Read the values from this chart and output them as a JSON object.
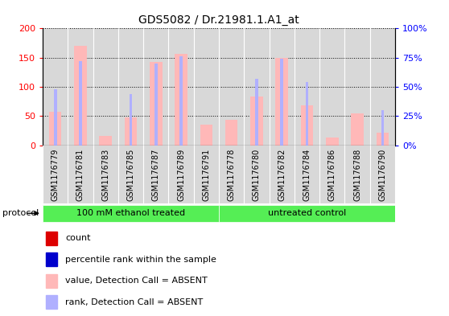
{
  "title": "GDS5082 / Dr.21981.1.A1_at",
  "samples": [
    "GSM1176779",
    "GSM1176781",
    "GSM1176783",
    "GSM1176785",
    "GSM1176787",
    "GSM1176789",
    "GSM1176791",
    "GSM1176778",
    "GSM1176780",
    "GSM1176782",
    "GSM1176784",
    "GSM1176786",
    "GSM1176788",
    "GSM1176790"
  ],
  "values": [
    57,
    170,
    16,
    48,
    143,
    157,
    36,
    44,
    84,
    149,
    68,
    13,
    55,
    22
  ],
  "ranks": [
    48,
    72,
    0,
    44,
    70,
    76,
    0,
    0,
    57,
    74,
    54,
    0,
    0,
    30
  ],
  "absent": [
    true,
    true,
    true,
    true,
    true,
    true,
    true,
    true,
    true,
    true,
    true,
    true,
    true,
    true
  ],
  "groups": [
    "100 mM ethanol treated",
    "100 mM ethanol treated",
    "100 mM ethanol treated",
    "100 mM ethanol treated",
    "100 mM ethanol treated",
    "100 mM ethanol treated",
    "100 mM ethanol treated",
    "untreated control",
    "untreated control",
    "untreated control",
    "untreated control",
    "untreated control",
    "untreated control",
    "untreated control"
  ],
  "bar_color_absent": "#ffb8b8",
  "rank_color_absent": "#b0b0ff",
  "ylim_left": [
    0,
    200
  ],
  "ylim_right": [
    0,
    100
  ],
  "yticks_left": [
    0,
    50,
    100,
    150,
    200
  ],
  "yticks_right": [
    0,
    25,
    50,
    75,
    100
  ],
  "ytick_labels_right": [
    "0%",
    "25%",
    "50%",
    "75%",
    "100%"
  ],
  "background_color": "#ffffff",
  "plot_bg": "#d8d8d8",
  "green_color": "#55ee55",
  "legend_items": [
    {
      "label": "count",
      "color": "#dd0000"
    },
    {
      "label": "percentile rank within the sample",
      "color": "#0000cc"
    },
    {
      "label": "value, Detection Call = ABSENT",
      "color": "#ffb8b8"
    },
    {
      "label": "rank, Detection Call = ABSENT",
      "color": "#b0b0ff"
    }
  ],
  "n_ethanol": 7,
  "n_total": 14
}
